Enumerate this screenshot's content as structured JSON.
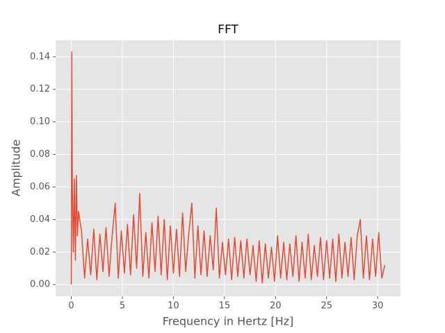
{
  "chart_data": {
    "type": "line",
    "title": "FFT",
    "x_label": "Frequency in Hertz [Hz]",
    "y_label": "Amplitude",
    "xlim": [
      -1.535,
      32.235
    ],
    "ylim": [
      -0.00715,
      0.15015
    ],
    "xticks": [
      0,
      5,
      10,
      15,
      20,
      25,
      30
    ],
    "yticks": [
      {
        "value": 0,
        "label": "0.00"
      },
      {
        "value": 0.02,
        "label": "0.02"
      },
      {
        "value": 0.04,
        "label": "0.04"
      },
      {
        "value": 0.06,
        "label": "0.06"
      },
      {
        "value": 0.08,
        "label": "0.08"
      },
      {
        "value": 0.1,
        "label": "0.10"
      },
      {
        "value": 0.12,
        "label": "0.12"
      },
      {
        "value": 0.14,
        "label": "0.14"
      }
    ],
    "grid": true,
    "series": [
      {
        "color": "#e24a33",
        "x": [
          0,
          0.05,
          0.1,
          0.2,
          0.3,
          0.4,
          0.5,
          0.6,
          0.7,
          1.0,
          1.3,
          1.6,
          1.9,
          2.2,
          2.5,
          2.8,
          3.1,
          3.4,
          3.7,
          4.0,
          4.3,
          4.6,
          4.9,
          5.2,
          5.5,
          5.8,
          6.1,
          6.4,
          6.7,
          7.0,
          7.3,
          7.6,
          7.9,
          8.2,
          8.5,
          8.8,
          9.1,
          9.4,
          9.7,
          10.0,
          10.3,
          10.6,
          10.9,
          11.2,
          11.5,
          11.8,
          12.1,
          12.4,
          12.7,
          13.0,
          13.3,
          13.6,
          13.9,
          14.2,
          14.5,
          14.8,
          15.1,
          15.4,
          15.7,
          16.0,
          16.3,
          16.6,
          16.9,
          17.2,
          17.5,
          17.8,
          18.1,
          18.4,
          18.7,
          19.0,
          19.3,
          19.6,
          19.9,
          20.2,
          20.5,
          20.8,
          21.1,
          21.4,
          21.7,
          22.0,
          22.3,
          22.6,
          22.9,
          23.2,
          23.5,
          23.8,
          24.1,
          24.4,
          24.7,
          25.0,
          25.3,
          25.6,
          25.9,
          26.2,
          26.5,
          26.8,
          27.1,
          27.4,
          27.7,
          28.0,
          28.3,
          28.6,
          28.9,
          29.2,
          29.5,
          29.8,
          30.1,
          30.4,
          30.7
        ],
        "values": [
          0,
          0.143,
          0.06,
          0.02,
          0.065,
          0.015,
          0.067,
          0.03,
          0.045,
          0.033,
          0.004,
          0.028,
          0.006,
          0.034,
          0.003,
          0.031,
          0.008,
          0.035,
          0.005,
          0.03,
          0.05,
          0.004,
          0.033,
          0.007,
          0.037,
          0.006,
          0.043,
          0.01,
          0.056,
          0.005,
          0.032,
          0.004,
          0.038,
          0.008,
          0.042,
          0.006,
          0.04,
          0.003,
          0.036,
          0.007,
          0.034,
          0.005,
          0.044,
          0.008,
          0.031,
          0.05,
          0.004,
          0.036,
          0.006,
          0.033,
          0.005,
          0.03,
          0.009,
          0.047,
          0.004,
          0.026,
          0.006,
          0.028,
          0.003,
          0.029,
          0.005,
          0.027,
          0.004,
          0.028,
          0.006,
          0.024,
          0.002,
          0.027,
          0.001,
          0.025,
          0.004,
          0.023,
          0.002,
          0.03,
          0.004,
          0.026,
          0.003,
          0.025,
          0.005,
          0.03,
          0.002,
          0.026,
          0.004,
          0.031,
          0.003,
          0.024,
          0.005,
          0.029,
          0.003,
          0.027,
          0.004,
          0.028,
          0.002,
          0.031,
          0.004,
          0.026,
          0.005,
          0.029,
          0.003,
          0.03,
          0.04,
          0.004,
          0.03,
          0.003,
          0.028,
          0.005,
          0.032,
          0.004,
          0.012
        ]
      }
    ]
  }
}
